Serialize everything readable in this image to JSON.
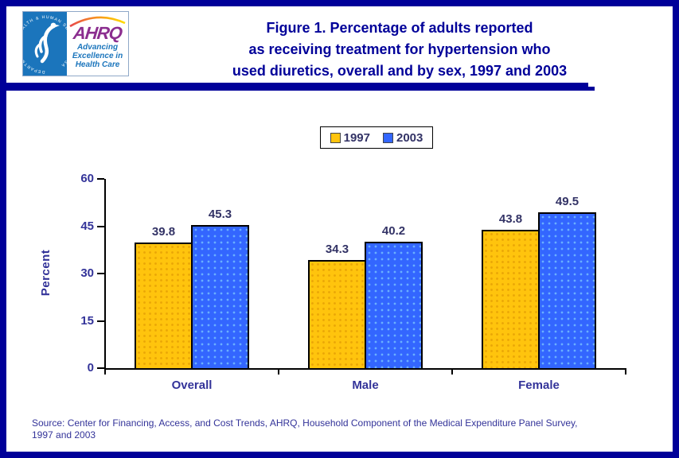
{
  "colors": {
    "frame_navy": "#000099",
    "title_navy": "#000099",
    "axis_text": "#333399",
    "value_text": "#333366",
    "hhs_blue": "#1B75BC",
    "ahrq_purple": "#8B2E8F"
  },
  "header": {
    "logo": {
      "acronym": "AHRQ",
      "tagline_lines": [
        "Advancing",
        "Excellence in",
        "Health Care"
      ],
      "seal_text": "DEPARTMENT OF HEALTH & HUMAN SERVICES · USA"
    },
    "title_lines": [
      "Figure 1. Percentage of adults reported",
      "as receiving treatment for hypertension who",
      "used diuretics, overall and by sex, 1997 and 2003"
    ]
  },
  "chart_data": {
    "type": "bar",
    "title": "Figure 1. Percentage of adults reported as receiving treatment for hypertension who used diuretics, overall and by sex, 1997 and 2003",
    "categories": [
      "Overall",
      "Male",
      "Female"
    ],
    "series": [
      {
        "name": "1997",
        "color": "#FFC40D",
        "values": [
          39.8,
          34.3,
          43.8
        ]
      },
      {
        "name": "2003",
        "color": "#3366FF",
        "values": [
          45.3,
          40.2,
          49.5
        ]
      }
    ],
    "ylabel": "Percent",
    "xlabel": "",
    "ylim": [
      0,
      60
    ],
    "yticks": [
      0,
      15,
      30,
      45,
      60
    ],
    "grid": false,
    "legend_position": "top-center",
    "value_labels": true
  },
  "footer": {
    "source_lines": [
      "Source: Center for Financing, Access, and Cost Trends, AHRQ, Household Component of the Medical Expenditure Panel Survey,",
      "1997 and 2003"
    ]
  }
}
